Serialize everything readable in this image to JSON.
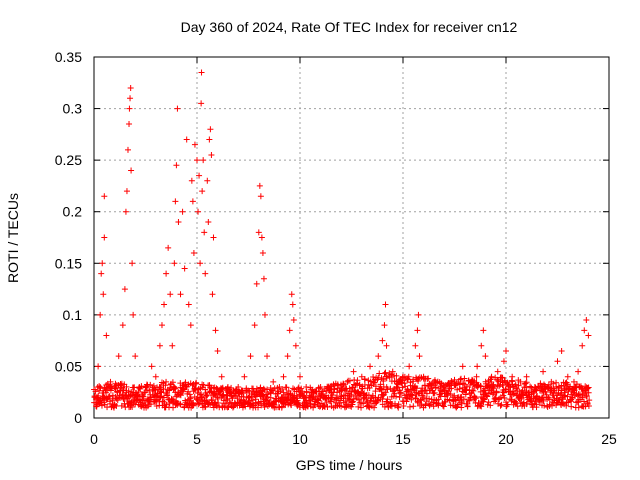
{
  "chart_data": {
    "type": "scatter",
    "title": "Day 360 of 2024, Rate Of TEC Index for receiver cn12",
    "xlabel": "GPS time / hours",
    "ylabel": "ROTI / TECUs",
    "xlim": [
      0,
      25
    ],
    "ylim": [
      0,
      0.35
    ],
    "xticks": [
      0,
      5,
      10,
      15,
      20,
      25
    ],
    "xtick_labels": [
      "0",
      "5",
      "10",
      "15",
      "20",
      "25"
    ],
    "yticks": [
      0,
      0.05,
      0.1,
      0.15,
      0.2,
      0.25,
      0.3,
      0.35
    ],
    "ytick_labels": [
      "0",
      "0.05",
      "0.1",
      "0.15",
      "0.2",
      "0.25",
      "0.3",
      "0.35"
    ],
    "grid": true,
    "marker": "+",
    "series": [
      {
        "name": "ROTI",
        "color": "#ff0000",
        "points": [
          [
            0.1,
            0.02
          ],
          [
            0.2,
            0.05
          ],
          [
            0.3,
            0.1
          ],
          [
            0.35,
            0.14
          ],
          [
            0.4,
            0.15
          ],
          [
            0.45,
            0.12
          ],
          [
            0.5,
            0.215
          ],
          [
            0.5,
            0.175
          ],
          [
            0.6,
            0.08
          ],
          [
            0.8,
            0.035
          ],
          [
            1.0,
            0.03
          ],
          [
            1.2,
            0.06
          ],
          [
            1.4,
            0.09
          ],
          [
            1.5,
            0.125
          ],
          [
            1.55,
            0.2
          ],
          [
            1.6,
            0.22
          ],
          [
            1.65,
            0.26
          ],
          [
            1.7,
            0.285
          ],
          [
            1.72,
            0.3
          ],
          [
            1.75,
            0.31
          ],
          [
            1.78,
            0.32
          ],
          [
            1.8,
            0.24
          ],
          [
            1.85,
            0.15
          ],
          [
            1.9,
            0.1
          ],
          [
            2.0,
            0.06
          ],
          [
            2.2,
            0.03
          ],
          [
            2.5,
            0.03
          ],
          [
            2.8,
            0.05
          ],
          [
            3.0,
            0.04
          ],
          [
            3.2,
            0.07
          ],
          [
            3.3,
            0.09
          ],
          [
            3.4,
            0.11
          ],
          [
            3.5,
            0.14
          ],
          [
            3.6,
            0.165
          ],
          [
            3.7,
            0.12
          ],
          [
            3.8,
            0.07
          ],
          [
            3.9,
            0.15
          ],
          [
            3.95,
            0.21
          ],
          [
            4.0,
            0.245
          ],
          [
            4.05,
            0.3
          ],
          [
            4.1,
            0.19
          ],
          [
            4.2,
            0.12
          ],
          [
            4.3,
            0.2
          ],
          [
            4.4,
            0.145
          ],
          [
            4.5,
            0.27
          ],
          [
            4.6,
            0.11
          ],
          [
            4.7,
            0.09
          ],
          [
            4.75,
            0.23
          ],
          [
            4.8,
            0.21
          ],
          [
            4.85,
            0.16
          ],
          [
            4.9,
            0.265
          ],
          [
            5.0,
            0.25
          ],
          [
            5.05,
            0.2
          ],
          [
            5.1,
            0.235
          ],
          [
            5.15,
            0.15
          ],
          [
            5.2,
            0.305
          ],
          [
            5.22,
            0.335
          ],
          [
            5.25,
            0.22
          ],
          [
            5.3,
            0.25
          ],
          [
            5.35,
            0.18
          ],
          [
            5.4,
            0.14
          ],
          [
            5.5,
            0.23
          ],
          [
            5.55,
            0.19
          ],
          [
            5.6,
            0.27
          ],
          [
            5.65,
            0.28
          ],
          [
            5.7,
            0.255
          ],
          [
            5.75,
            0.12
          ],
          [
            5.8,
            0.175
          ],
          [
            5.9,
            0.085
          ],
          [
            6.0,
            0.065
          ],
          [
            6.2,
            0.04
          ],
          [
            6.5,
            0.03
          ],
          [
            7.0,
            0.03
          ],
          [
            7.3,
            0.04
          ],
          [
            7.6,
            0.06
          ],
          [
            7.8,
            0.09
          ],
          [
            7.9,
            0.13
          ],
          [
            8.0,
            0.18
          ],
          [
            8.05,
            0.225
          ],
          [
            8.1,
            0.215
          ],
          [
            8.15,
            0.175
          ],
          [
            8.2,
            0.16
          ],
          [
            8.25,
            0.135
          ],
          [
            8.3,
            0.1
          ],
          [
            8.4,
            0.06
          ],
          [
            8.7,
            0.035
          ],
          [
            9.0,
            0.03
          ],
          [
            9.2,
            0.04
          ],
          [
            9.4,
            0.06
          ],
          [
            9.5,
            0.085
          ],
          [
            9.6,
            0.12
          ],
          [
            9.65,
            0.11
          ],
          [
            9.7,
            0.095
          ],
          [
            9.8,
            0.07
          ],
          [
            10.0,
            0.04
          ],
          [
            10.3,
            0.03
          ],
          [
            10.6,
            0.025
          ],
          [
            11.0,
            0.03
          ],
          [
            11.5,
            0.025
          ],
          [
            12.0,
            0.03
          ],
          [
            12.3,
            0.035
          ],
          [
            12.6,
            0.045
          ],
          [
            13.0,
            0.04
          ],
          [
            13.4,
            0.05
          ],
          [
            13.8,
            0.06
          ],
          [
            14.0,
            0.075
          ],
          [
            14.1,
            0.09
          ],
          [
            14.15,
            0.11
          ],
          [
            14.2,
            0.07
          ],
          [
            14.5,
            0.045
          ],
          [
            14.8,
            0.035
          ],
          [
            15.0,
            0.04
          ],
          [
            15.3,
            0.05
          ],
          [
            15.6,
            0.07
          ],
          [
            15.7,
            0.085
          ],
          [
            15.75,
            0.1
          ],
          [
            15.8,
            0.06
          ],
          [
            16.0,
            0.04
          ],
          [
            16.5,
            0.035
          ],
          [
            17.0,
            0.03
          ],
          [
            17.5,
            0.035
          ],
          [
            17.9,
            0.05
          ],
          [
            18.3,
            0.035
          ],
          [
            18.6,
            0.05
          ],
          [
            18.8,
            0.07
          ],
          [
            18.9,
            0.085
          ],
          [
            19.0,
            0.06
          ],
          [
            19.3,
            0.04
          ],
          [
            19.6,
            0.045
          ],
          [
            19.9,
            0.055
          ],
          [
            20.0,
            0.065
          ],
          [
            20.3,
            0.04
          ],
          [
            20.7,
            0.035
          ],
          [
            21.0,
            0.04
          ],
          [
            21.4,
            0.03
          ],
          [
            21.8,
            0.045
          ],
          [
            22.2,
            0.035
          ],
          [
            22.5,
            0.055
          ],
          [
            22.7,
            0.065
          ],
          [
            23.0,
            0.04
          ],
          [
            23.3,
            0.035
          ],
          [
            23.5,
            0.045
          ],
          [
            23.7,
            0.07
          ],
          [
            23.8,
            0.085
          ],
          [
            23.9,
            0.095
          ],
          [
            24.0,
            0.08
          ]
        ],
        "dense_band": [
          [
            0,
            0.01,
            0.03
          ],
          [
            1,
            0.01,
            0.035
          ],
          [
            2,
            0.01,
            0.03
          ],
          [
            3,
            0.01,
            0.035
          ],
          [
            4,
            0.01,
            0.035
          ],
          [
            5,
            0.01,
            0.035
          ],
          [
            6,
            0.01,
            0.03
          ],
          [
            7,
            0.01,
            0.03
          ],
          [
            8,
            0.01,
            0.03
          ],
          [
            9,
            0.01,
            0.03
          ],
          [
            10,
            0.01,
            0.03
          ],
          [
            11,
            0.01,
            0.03
          ],
          [
            12,
            0.01,
            0.035
          ],
          [
            13,
            0.01,
            0.04
          ],
          [
            14,
            0.01,
            0.045
          ],
          [
            15,
            0.01,
            0.04
          ],
          [
            16,
            0.01,
            0.04
          ],
          [
            17,
            0.01,
            0.035
          ],
          [
            18,
            0.01,
            0.04
          ],
          [
            19,
            0.01,
            0.04
          ],
          [
            20,
            0.01,
            0.04
          ],
          [
            21,
            0.01,
            0.035
          ],
          [
            22,
            0.01,
            0.035
          ],
          [
            23,
            0.01,
            0.035
          ],
          [
            24,
            0.01,
            0.03
          ]
        ]
      }
    ]
  }
}
